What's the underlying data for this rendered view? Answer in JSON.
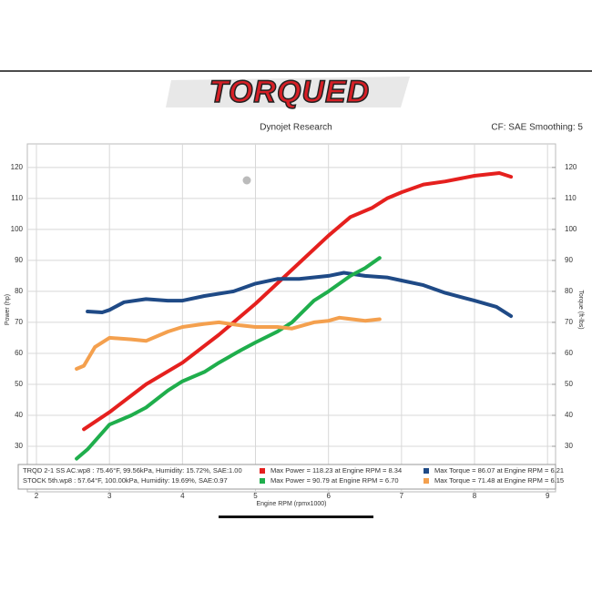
{
  "header": {
    "logo": "TORQUED",
    "subtitle": "Dynojet Research",
    "settings": "CF: SAE Smoothing: 5"
  },
  "chart_data": {
    "type": "line",
    "xlabel": "Engine RPM (rpmx1000)",
    "ylabel": "Power (hp)",
    "y2label": "Torque (ft-lbs)",
    "xlim": [
      1.875,
      9.11
    ],
    "xticks": [
      2,
      3,
      4,
      5,
      6,
      7,
      8,
      9
    ],
    "ylim": [
      15.3,
      127.6
    ],
    "yticks": [
      30,
      40,
      50,
      60,
      70,
      80,
      90,
      100,
      110,
      120
    ],
    "y2lim": [
      15.3,
      127.6
    ],
    "y2ticks": [
      30,
      40,
      50,
      60,
      70,
      80,
      90,
      100,
      110,
      120
    ],
    "grid": true,
    "series": [
      {
        "name": "Max Power = 118.23 at Engine RPM = 8.34",
        "color": "#e5201e",
        "x": [
          2.65,
          3.0,
          3.5,
          4.0,
          4.5,
          5.0,
          5.5,
          6.0,
          6.3,
          6.6,
          6.8,
          7.0,
          7.3,
          7.6,
          8.0,
          8.34,
          8.5
        ],
        "values": [
          35.5,
          41,
          50,
          57,
          66,
          76,
          87,
          98,
          104,
          107,
          110,
          112,
          114.5,
          115.5,
          117.3,
          118.2,
          117
        ]
      },
      {
        "name": "Max Torque = 86.07 at Engine RPM = 6.21",
        "color": "#1f4a86",
        "axis": "y2",
        "x": [
          2.7,
          2.9,
          3.0,
          3.2,
          3.5,
          3.8,
          4.0,
          4.3,
          4.7,
          5.0,
          5.3,
          5.6,
          6.0,
          6.21,
          6.5,
          6.8,
          7.0,
          7.3,
          7.6,
          8.0,
          8.3,
          8.5
        ],
        "values": [
          73.5,
          73.2,
          74,
          76.5,
          77.5,
          77,
          77,
          78.5,
          80,
          82.5,
          84,
          84,
          85,
          86,
          85,
          84.5,
          83.5,
          82,
          79.5,
          77,
          75,
          72
        ]
      },
      {
        "name": "Max Power = 90.79 at Engine RPM = 6.70",
        "color": "#1fae4c",
        "x": [
          2.55,
          2.7,
          3.0,
          3.3,
          3.5,
          3.8,
          4.0,
          4.3,
          4.5,
          4.8,
          5.0,
          5.3,
          5.5,
          5.8,
          6.0,
          6.3,
          6.5,
          6.7
        ],
        "values": [
          26,
          29,
          37,
          40,
          42.5,
          48,
          51,
          54,
          57,
          61,
          63.5,
          67,
          70,
          77,
          80,
          85,
          87.5,
          90.8
        ]
      },
      {
        "name": "Max Torque = 71.48 at Engine RPM = 6.15",
        "color": "#f4a04e",
        "axis": "y2",
        "x": [
          2.55,
          2.65,
          2.8,
          3.0,
          3.3,
          3.5,
          3.8,
          4.0,
          4.3,
          4.5,
          4.8,
          5.0,
          5.3,
          5.5,
          5.8,
          6.0,
          6.15,
          6.5,
          6.7
        ],
        "values": [
          55,
          56,
          62,
          65,
          64.5,
          64,
          67,
          68.5,
          69.5,
          70,
          69,
          68.5,
          68.5,
          68,
          70,
          70.5,
          71.5,
          70.5,
          71
        ]
      }
    ],
    "runs": [
      "TRQD 2-1 SS AC.wp8  : 75.46°F, 99.56kPa, Humidity: 15.72%, SAE:1.00",
      "STOCK 5th.wp8  : 57.64°F, 100.00kPa, Humidity: 19.69%, SAE:0.97"
    ]
  }
}
